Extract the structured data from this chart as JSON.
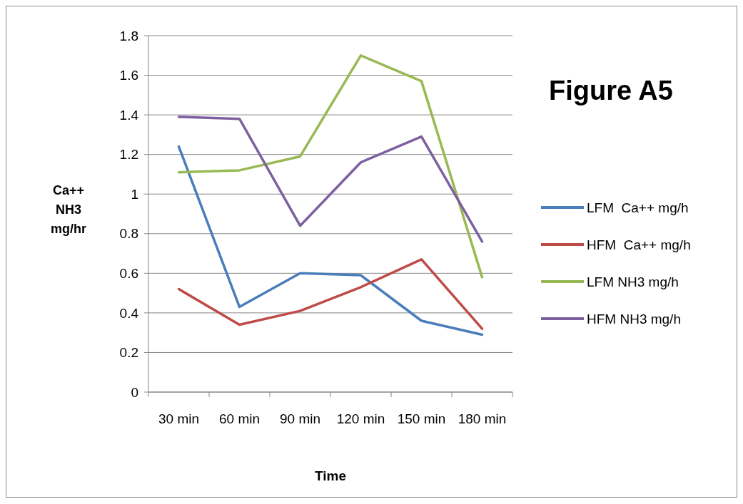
{
  "chart_data": {
    "type": "line",
    "title": "Figure A5",
    "xlabel": "Time",
    "ylabel": "Ca++ NH3 mg/hr",
    "categories": [
      "30 min",
      "60 min",
      "90 min",
      "120 min",
      "150 min",
      "180 min"
    ],
    "series": [
      {
        "name": "LFM  Ca++ mg/h",
        "color": "#4a7ebb",
        "values": [
          1.24,
          0.43,
          0.6,
          0.59,
          0.36,
          0.29
        ]
      },
      {
        "name": "HFM  Ca++ mg/h",
        "color": "#be4b48",
        "values": [
          0.52,
          0.34,
          0.41,
          0.53,
          0.67,
          0.32
        ]
      },
      {
        "name": "LFM NH3 mg/h",
        "color": "#98b954",
        "values": [
          1.11,
          1.12,
          1.19,
          1.7,
          1.57,
          0.58
        ]
      },
      {
        "name": "HFM NH3 mg/h",
        "color": "#7d60a0",
        "values": [
          1.39,
          1.38,
          0.84,
          1.16,
          1.29,
          0.76
        ]
      }
    ],
    "ylim": [
      0,
      1.8
    ],
    "yticks": [
      0,
      0.2,
      0.4,
      0.6,
      0.8,
      1,
      1.2,
      1.4,
      1.6,
      1.8
    ],
    "grid": "y",
    "legend": "right",
    "marker": "none",
    "line_style": "solid"
  }
}
